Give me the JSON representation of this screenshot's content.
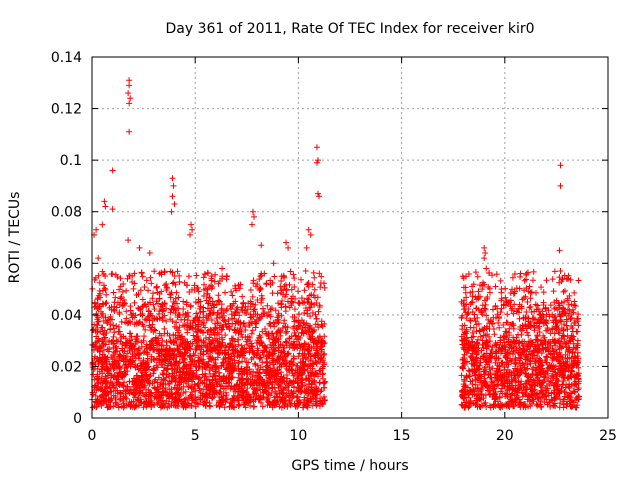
{
  "chart_data": {
    "type": "scatter",
    "title": "Day 361 of 2011, Rate Of TEC Index for receiver kir0",
    "xlabel": "GPS time / hours",
    "ylabel": "ROTI / TECUs",
    "xlim": [
      0,
      25
    ],
    "ylim": [
      0,
      0.14
    ],
    "x_ticks": [
      "0",
      "5",
      "10",
      "15",
      "20",
      "25"
    ],
    "y_ticks": [
      "0",
      "0.02",
      "0.04",
      "0.06",
      "0.08",
      "0.1",
      "0.12",
      "0.14"
    ],
    "grid": true,
    "marker": "+",
    "series": [
      {
        "color": "#ff0000",
        "coverage_hours": [
          [
            0,
            11.3
          ],
          [
            17.9,
            23.6
          ]
        ],
        "typical_range": [
          0.004,
          0.03
        ],
        "points": [
          {
            "x": 1.8,
            "y": 0.131
          },
          {
            "x": 1.8,
            "y": 0.129
          },
          {
            "x": 1.75,
            "y": 0.126
          },
          {
            "x": 1.85,
            "y": 0.124
          },
          {
            "x": 1.8,
            "y": 0.122
          },
          {
            "x": 1.8,
            "y": 0.111
          },
          {
            "x": 1.0,
            "y": 0.096
          },
          {
            "x": 3.9,
            "y": 0.093
          },
          {
            "x": 3.95,
            "y": 0.09
          },
          {
            "x": 3.9,
            "y": 0.086
          },
          {
            "x": 4.0,
            "y": 0.083
          },
          {
            "x": 3.85,
            "y": 0.08
          },
          {
            "x": 0.6,
            "y": 0.084
          },
          {
            "x": 0.65,
            "y": 0.082
          },
          {
            "x": 1.0,
            "y": 0.081
          },
          {
            "x": 0.2,
            "y": 0.073
          },
          {
            "x": 0.1,
            "y": 0.071
          },
          {
            "x": 0.5,
            "y": 0.075
          },
          {
            "x": 1.75,
            "y": 0.069
          },
          {
            "x": 4.8,
            "y": 0.075
          },
          {
            "x": 4.85,
            "y": 0.073
          },
          {
            "x": 4.75,
            "y": 0.071
          },
          {
            "x": 7.8,
            "y": 0.08
          },
          {
            "x": 7.85,
            "y": 0.078
          },
          {
            "x": 7.75,
            "y": 0.075
          },
          {
            "x": 8.2,
            "y": 0.067
          },
          {
            "x": 9.4,
            "y": 0.068
          },
          {
            "x": 9.5,
            "y": 0.066
          },
          {
            "x": 10.9,
            "y": 0.105
          },
          {
            "x": 10.95,
            "y": 0.1
          },
          {
            "x": 10.9,
            "y": 0.099
          },
          {
            "x": 10.95,
            "y": 0.087
          },
          {
            "x": 11.0,
            "y": 0.086
          },
          {
            "x": 10.5,
            "y": 0.073
          },
          {
            "x": 10.6,
            "y": 0.071
          },
          {
            "x": 10.4,
            "y": 0.066
          },
          {
            "x": 2.3,
            "y": 0.066
          },
          {
            "x": 2.8,
            "y": 0.064
          },
          {
            "x": 6.3,
            "y": 0.058
          },
          {
            "x": 8.8,
            "y": 0.06
          },
          {
            "x": 0.3,
            "y": 0.062
          },
          {
            "x": 5.8,
            "y": 0.055
          },
          {
            "x": 19.0,
            "y": 0.066
          },
          {
            "x": 19.05,
            "y": 0.064
          },
          {
            "x": 19.0,
            "y": 0.062
          },
          {
            "x": 19.1,
            "y": 0.058
          },
          {
            "x": 18.9,
            "y": 0.05
          },
          {
            "x": 18.8,
            "y": 0.047
          },
          {
            "x": 22.7,
            "y": 0.098
          },
          {
            "x": 22.7,
            "y": 0.09
          },
          {
            "x": 22.65,
            "y": 0.065
          },
          {
            "x": 22.7,
            "y": 0.057
          },
          {
            "x": 22.8,
            "y": 0.054
          },
          {
            "x": 23.0,
            "y": 0.054
          },
          {
            "x": 21.0,
            "y": 0.047
          },
          {
            "x": 21.1,
            "y": 0.045
          },
          {
            "x": 21.5,
            "y": 0.044
          },
          {
            "x": 23.3,
            "y": 0.042
          },
          {
            "x": 20.2,
            "y": 0.033
          },
          {
            "x": 18.5,
            "y": 0.035
          }
        ]
      }
    ]
  }
}
